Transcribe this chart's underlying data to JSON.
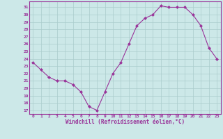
{
  "x": [
    0,
    1,
    2,
    3,
    4,
    5,
    6,
    7,
    8,
    9,
    10,
    11,
    12,
    13,
    14,
    15,
    16,
    17,
    18,
    19,
    20,
    21,
    22,
    23
  ],
  "y": [
    23.5,
    22.5,
    21.5,
    21.0,
    21.0,
    20.5,
    19.5,
    17.5,
    17.0,
    19.5,
    22.0,
    23.5,
    26.0,
    28.5,
    29.5,
    30.0,
    31.2,
    31.0,
    31.0,
    31.0,
    30.0,
    28.5,
    25.5,
    24.0
  ],
  "line_color": "#993399",
  "marker": "D",
  "marker_size": 2.0,
  "bg_color": "#cce8e8",
  "grid_color": "#aacccc",
  "xlabel": "Windchill (Refroidissement éolien,°C)",
  "xlabel_color": "#993399",
  "tick_color": "#993399",
  "ytick_labels": [
    "17",
    "18",
    "19",
    "20",
    "21",
    "22",
    "23",
    "24",
    "25",
    "26",
    "27",
    "28",
    "29",
    "30",
    "31"
  ],
  "ytick_vals": [
    17,
    18,
    19,
    20,
    21,
    22,
    23,
    24,
    25,
    26,
    27,
    28,
    29,
    30,
    31
  ],
  "xtick_vals": [
    0,
    1,
    2,
    3,
    4,
    5,
    6,
    7,
    8,
    9,
    10,
    11,
    12,
    13,
    14,
    15,
    16,
    17,
    18,
    19,
    20,
    21,
    22,
    23
  ],
  "xtick_labels": [
    "0",
    "1",
    "2",
    "3",
    "4",
    "5",
    "6",
    "7",
    "8",
    "9",
    "10",
    "11",
    "12",
    "13",
    "14",
    "15",
    "16",
    "17",
    "18",
    "19",
    "20",
    "21",
    "22",
    "23"
  ],
  "ylim": [
    16.5,
    31.8
  ],
  "xlim": [
    -0.5,
    23.5
  ],
  "spine_color": "#993399"
}
